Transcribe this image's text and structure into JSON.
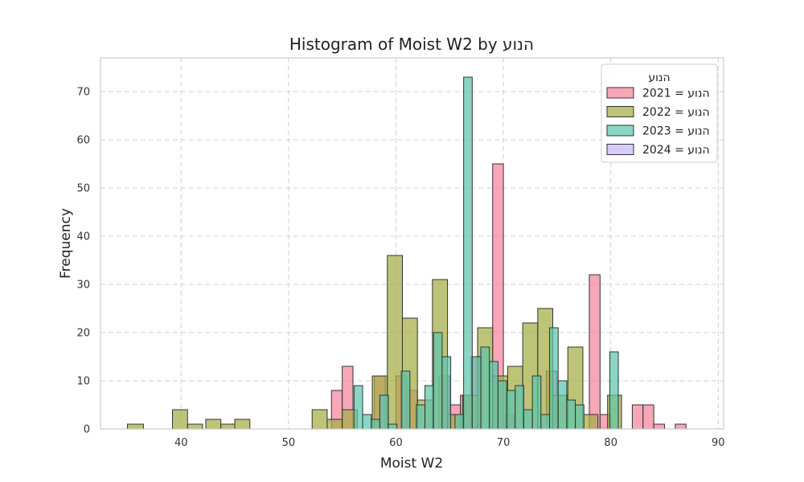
{
  "chart_data": {
    "type": "histogram",
    "title": "Histogram of Moist W2 by הנוע",
    "xlabel": "Moist W2",
    "ylabel": "Frequency",
    "xlim": [
      32.5,
      90.5
    ],
    "ylim": [
      0,
      77
    ],
    "xticks": [
      40,
      50,
      60,
      70,
      80,
      90
    ],
    "yticks": [
      0,
      10,
      20,
      30,
      40,
      50,
      60,
      70
    ],
    "grid": true,
    "legend": {
      "title": "הנוע",
      "position": "top-right"
    },
    "series": [
      {
        "name": "הנוע = 2021",
        "color": "#f4859b",
        "bins": [
          [
            54,
            55,
            8
          ],
          [
            55,
            56,
            13
          ],
          [
            58,
            59,
            11
          ],
          [
            60,
            61,
            11
          ],
          [
            61,
            62,
            8
          ],
          [
            64,
            65,
            11
          ],
          [
            65,
            66,
            5
          ],
          [
            66,
            67,
            7
          ],
          [
            67,
            68,
            15
          ],
          [
            69,
            70,
            55
          ],
          [
            70,
            71,
            3
          ],
          [
            74,
            75,
            12
          ],
          [
            78,
            79,
            32
          ],
          [
            79,
            80,
            3
          ],
          [
            82,
            83,
            5
          ],
          [
            83,
            84,
            5
          ],
          [
            84,
            85,
            1
          ],
          [
            86,
            87,
            1
          ]
        ]
      },
      {
        "name": "הנוע = 2022",
        "color": "#a4ad44",
        "bins": [
          [
            35,
            36.5,
            1
          ],
          [
            39.2,
            40.6,
            4
          ],
          [
            40.6,
            42,
            1
          ],
          [
            42.3,
            43.7,
            2
          ],
          [
            43.7,
            45,
            1
          ],
          [
            45,
            46.4,
            2
          ],
          [
            52.2,
            53.6,
            4
          ],
          [
            53.6,
            55,
            2
          ],
          [
            55,
            56.4,
            4
          ],
          [
            57.8,
            59.2,
            11
          ],
          [
            59.2,
            60.6,
            36
          ],
          [
            60.6,
            62,
            23
          ],
          [
            62,
            63.4,
            6
          ],
          [
            63.4,
            64.8,
            31
          ],
          [
            64.8,
            66.2,
            3
          ],
          [
            66.2,
            67.6,
            7
          ],
          [
            67.6,
            69,
            21
          ],
          [
            69,
            70.4,
            11
          ],
          [
            70.4,
            71.8,
            13
          ],
          [
            71.8,
            73.2,
            22
          ],
          [
            73.2,
            74.6,
            25
          ],
          [
            74.6,
            76,
            7
          ],
          [
            76,
            77.4,
            17
          ],
          [
            77.4,
            78.8,
            3
          ],
          [
            79.7,
            81,
            7
          ]
        ]
      },
      {
        "name": "הנוע = 2023",
        "color": "#5dc5ad",
        "bins": [
          [
            56.1,
            56.9,
            9
          ],
          [
            56.9,
            57.7,
            3
          ],
          [
            57.7,
            58.5,
            2
          ],
          [
            58.5,
            59.3,
            7
          ],
          [
            59.3,
            60.1,
            1
          ],
          [
            60.5,
            61.3,
            12
          ],
          [
            61.9,
            62.7,
            5
          ],
          [
            62.7,
            63.5,
            9
          ],
          [
            63.5,
            64.3,
            20
          ],
          [
            64.3,
            65.1,
            15
          ],
          [
            65.5,
            66.3,
            3
          ],
          [
            66.3,
            67.1,
            73
          ],
          [
            67.1,
            67.9,
            15
          ],
          [
            67.9,
            68.7,
            17
          ],
          [
            68.7,
            69.5,
            14
          ],
          [
            69.5,
            70.3,
            10
          ],
          [
            70.3,
            71.1,
            8
          ],
          [
            71.1,
            71.9,
            9
          ],
          [
            71.9,
            72.7,
            4
          ],
          [
            72.7,
            73.5,
            11
          ],
          [
            73.5,
            74.3,
            3
          ],
          [
            74.3,
            75.1,
            21
          ],
          [
            75.1,
            75.9,
            10
          ],
          [
            75.9,
            76.7,
            6
          ],
          [
            76.7,
            77.5,
            5
          ],
          [
            79.9,
            80.7,
            16
          ]
        ]
      },
      {
        "name": "הנוע = 2024",
        "color": "#c7b8f4",
        "bins": []
      }
    ]
  }
}
